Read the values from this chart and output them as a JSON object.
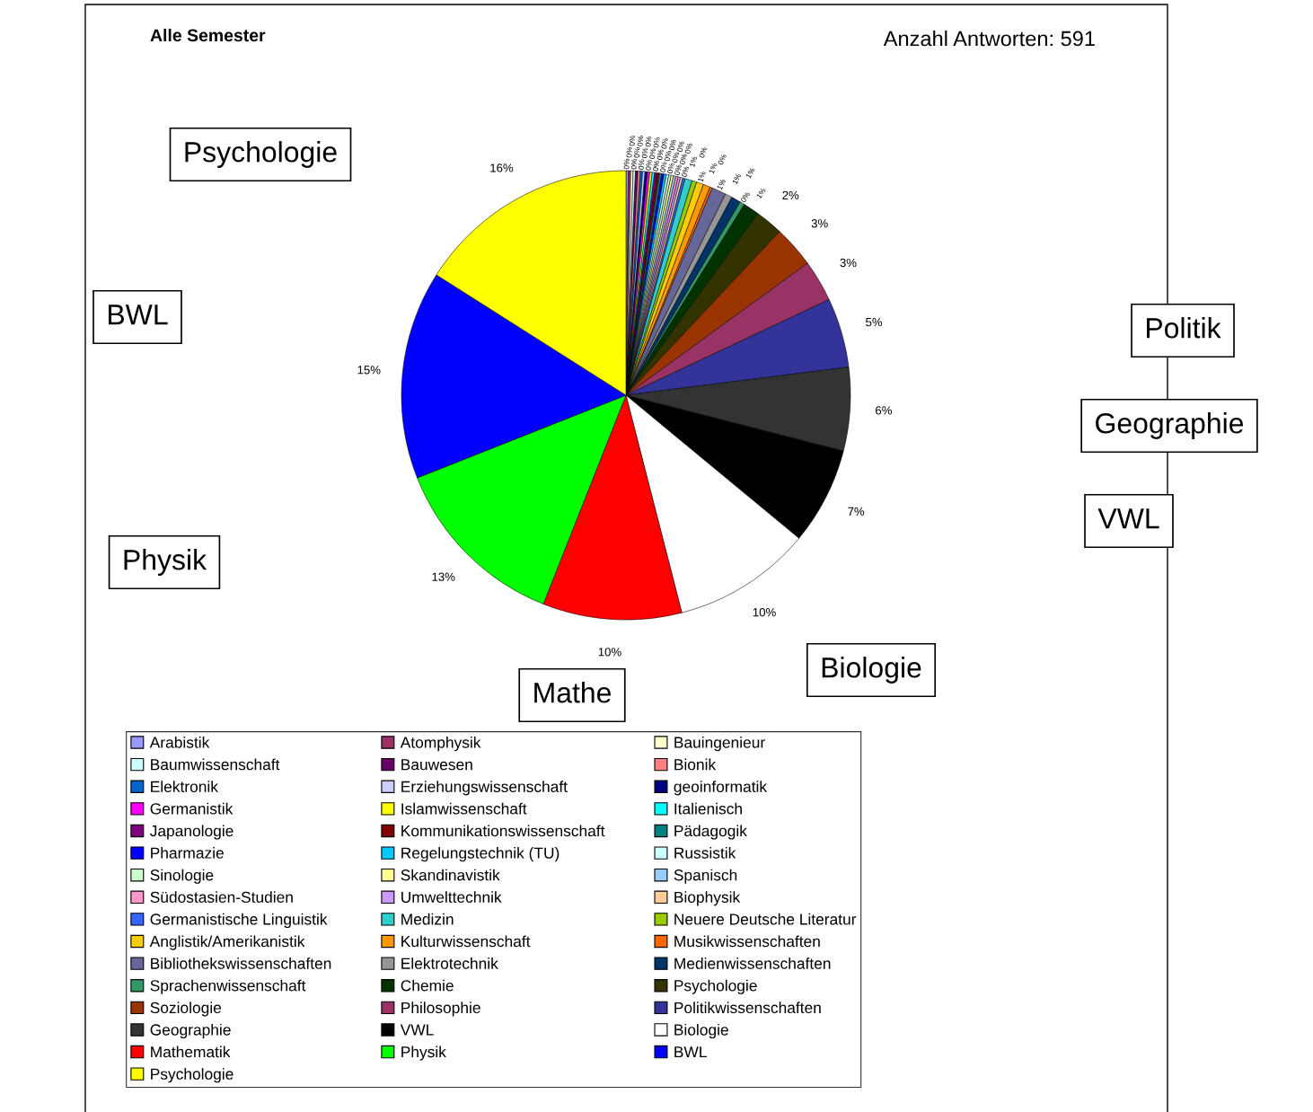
{
  "chart_data": {
    "type": "pie",
    "title": "Alle Semester",
    "subtitle": "Anzahl Antworten: 591",
    "categories": [
      "Arabistik",
      "Atomphysik",
      "Bauingenieur",
      "Baumwissenschaft",
      "Bauwesen",
      "Bionik",
      "Elektronik",
      "Erziehungswissenschaft",
      "geoinformatik",
      "Germanistik",
      "Islamwissenschaft",
      "Italienisch",
      "Japanologie",
      "Kommunikationswissenschaft",
      "Pädagogik",
      "Pharmazie",
      "Regelungstechnik (TU)",
      "Russistik",
      "Sinologie",
      "Skandinavistik",
      "Spanisch",
      "Südostasien-Studien",
      "Umwelttechnik",
      "Biophysik",
      "Germanistische Linguistik",
      "Medizin",
      "Neuere Deutsche Literatur",
      "Anglistik/Amerikanistik",
      "Kulturwissenschaft",
      "Musikwissenschaften",
      "Bibliothekswissenschaften",
      "Elektrotechnik",
      "Medienwissenschaften",
      "Sprachenwissenschaft",
      "Chemie",
      "Psychologie",
      "Soziologie",
      "Philosophie",
      "Politikwissenschaften",
      "Geographie",
      "VWL",
      "Biologie",
      "Mathematik",
      "Physik",
      "BWL",
      "Psychologie"
    ],
    "values": [
      0.17,
      0.17,
      0.17,
      0.17,
      0.17,
      0.17,
      0.17,
      0.17,
      0.17,
      0.17,
      0.17,
      0.17,
      0.17,
      0.17,
      0.17,
      0.17,
      0.17,
      0.17,
      0.17,
      0.17,
      0.17,
      0.17,
      0.17,
      0.17,
      0.17,
      0.51,
      0.34,
      0.51,
      0.51,
      0.17,
      1.02,
      0.51,
      0.68,
      0.34,
      1.16,
      2,
      3,
      3,
      5,
      6,
      7,
      10,
      10,
      13,
      15,
      16
    ],
    "colors": [
      "#9999ff",
      "#993366",
      "#ffffcc",
      "#ccffff",
      "#660066",
      "#ff8080",
      "#0066cc",
      "#ccccff",
      "#000080",
      "#ff00ff",
      "#ffff00",
      "#00ffff",
      "#800080",
      "#800000",
      "#008080",
      "#0000ff",
      "#00ccff",
      "#ccffff",
      "#ccffcc",
      "#ffff99",
      "#99ccff",
      "#ff99cc",
      "#cc99ff",
      "#ffcc99",
      "#3366ff",
      "#33cccc",
      "#99cc00",
      "#ffcc00",
      "#ff9900",
      "#ff6600",
      "#666699",
      "#969696",
      "#003366",
      "#339966",
      "#003300",
      "#333300",
      "#993300",
      "#993366",
      "#333399",
      "#333333",
      "#000000",
      "#ffffff",
      "#ff0000",
      "#00ff00",
      "#0000ff",
      "#ffff00"
    ],
    "value_labels": [
      "0%",
      "0%",
      "0%",
      "0%",
      "0%",
      "0%",
      "0%",
      "0%",
      "0%",
      "0%",
      "0%",
      "0%",
      "0%",
      "0%",
      "0%",
      "0%",
      "0%",
      "0%",
      "0%",
      "0%",
      "0%",
      "0%",
      "0%",
      "0%",
      "0%",
      "1%",
      "0%",
      "1%",
      "1%",
      "0%",
      "1%",
      "1%",
      "1%",
      "0%",
      "1%",
      "2%",
      "3%",
      "3%",
      "5%",
      "6%",
      "7%",
      "10%",
      "10%",
      "13%",
      "15%",
      "16%"
    ],
    "annotations": [
      "Psychologie",
      "BWL",
      "Physik",
      "Mathe",
      "Biologie",
      "VWL",
      "Geographie",
      "Politik"
    ],
    "legend": "bottom"
  }
}
